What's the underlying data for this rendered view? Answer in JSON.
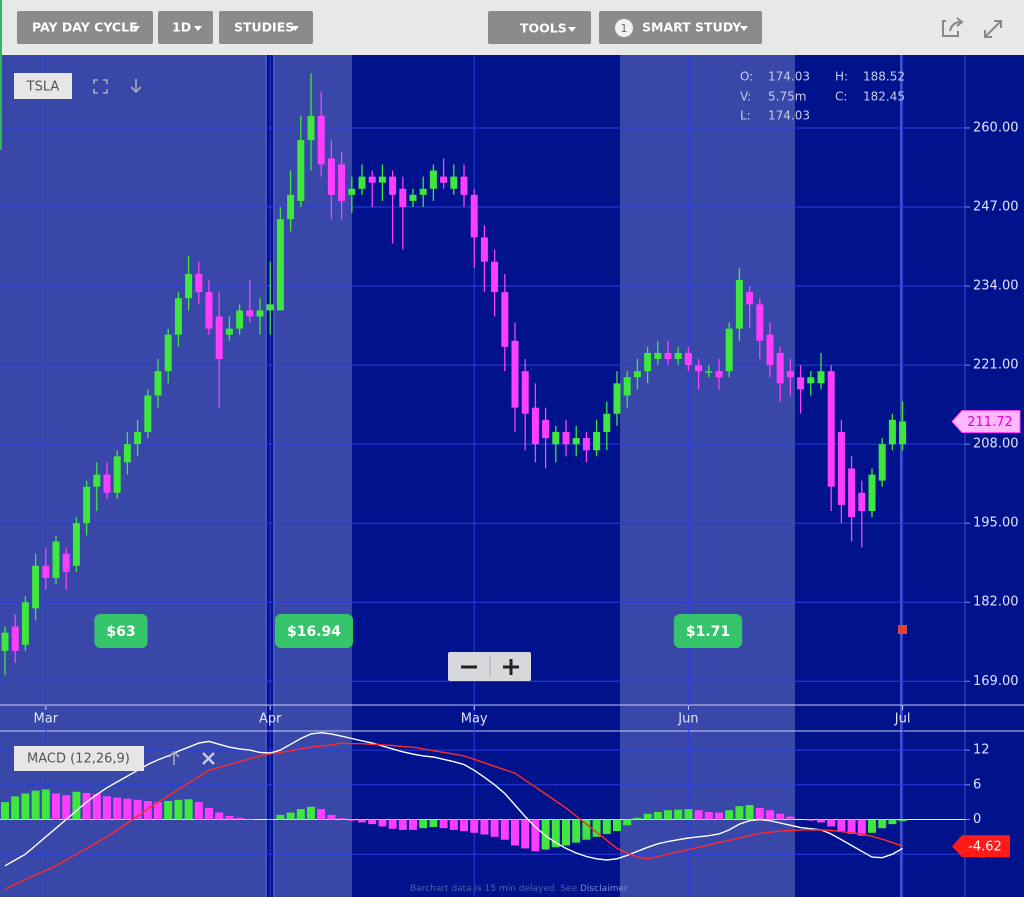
{
  "toolbar": {
    "pay_day_cycle": "PAY DAY CYCLE",
    "interval": "1D",
    "studies": "STUDIES",
    "tools": "TOOLS",
    "smart_study_count": 1,
    "smart_study": "SMART STUDY"
  },
  "footer": {
    "text": "Barchart data is 15 min delayed. See ",
    "link": "Disclaimer"
  },
  "chart_data": [
    {
      "type": "candlestick",
      "symbol": "TSLA",
      "categories": [
        null,
        null,
        null,
        null,
        "Mar",
        null,
        null,
        null,
        null,
        null,
        null,
        null,
        null,
        null,
        null,
        null,
        null,
        null,
        null,
        null,
        null,
        null,
        null,
        null,
        null,
        null,
        "Apr",
        null,
        null,
        null,
        null,
        null,
        null,
        null,
        null,
        null,
        null,
        null,
        null,
        null,
        null,
        null,
        null,
        null,
        null,
        null,
        "May",
        null,
        null,
        null,
        null,
        null,
        null,
        null,
        null,
        null,
        null,
        null,
        null,
        null,
        null,
        null,
        null,
        null,
        null,
        null,
        null,
        "Jun",
        null,
        null,
        null,
        null,
        null,
        null,
        null,
        null,
        null,
        null,
        null,
        null,
        null,
        null,
        null,
        null,
        null,
        null,
        null,
        null,
        "Jul"
      ],
      "open": [
        174,
        178,
        175,
        181,
        188,
        186,
        190,
        188,
        195,
        201,
        203,
        200,
        205,
        208,
        210,
        216,
        220,
        226,
        232,
        236,
        233,
        229,
        226,
        227,
        230,
        229,
        230,
        230,
        245,
        248,
        258,
        262,
        255,
        254,
        249,
        250,
        252,
        251,
        252,
        250,
        248,
        249,
        250,
        252,
        250,
        252,
        249,
        242,
        238,
        233,
        225,
        220,
        214,
        212,
        208,
        210,
        208,
        209,
        207,
        210,
        213,
        216,
        219,
        220,
        222,
        223,
        222,
        223,
        221,
        220,
        220,
        220,
        227,
        233,
        231,
        226,
        223,
        220,
        219,
        218,
        218,
        220,
        210,
        204,
        200,
        197,
        202,
        208,
        208
      ],
      "high": [
        178,
        180,
        183,
        190,
        191,
        193,
        191,
        196,
        202,
        205,
        205,
        207,
        210,
        212,
        217,
        222,
        227,
        233,
        239,
        238,
        235,
        233,
        229,
        231,
        235,
        232,
        238,
        247,
        253,
        262,
        269,
        266,
        258,
        256,
        252,
        254,
        253,
        254,
        253,
        252,
        250,
        252,
        254,
        255,
        254,
        254,
        250,
        244,
        240,
        236,
        228,
        222,
        218,
        214,
        211,
        212,
        211,
        210,
        212,
        215,
        220,
        220,
        222,
        224,
        225,
        225,
        224,
        224,
        222,
        221,
        222,
        228,
        237,
        234,
        232,
        228,
        224,
        222,
        221,
        220,
        223,
        221,
        212,
        206,
        202,
        204,
        209,
        213,
        215
      ],
      "low": [
        170,
        172,
        174,
        179,
        184,
        185,
        184,
        187,
        193,
        197,
        199,
        199,
        203,
        206,
        209,
        214,
        218,
        224,
        230,
        231,
        226,
        214,
        225,
        226,
        228,
        226,
        226,
        230,
        243,
        247,
        253,
        252,
        245,
        245,
        246,
        249,
        247,
        248,
        241,
        240,
        247,
        247,
        248,
        250,
        249,
        247,
        237,
        233,
        229,
        220,
        210,
        207,
        205,
        204,
        205,
        206,
        206,
        205,
        206,
        207,
        211,
        214,
        217,
        218,
        221,
        221,
        221,
        220,
        217,
        219,
        217,
        219,
        225,
        227,
        222,
        219,
        215,
        216,
        213,
        216,
        217,
        197,
        195,
        192,
        191,
        196,
        201,
        207,
        207
      ],
      "close": [
        177,
        174,
        182,
        188,
        186,
        192,
        187,
        195,
        201,
        203,
        200,
        206,
        208,
        210,
        216,
        220,
        226,
        232,
        236,
        233,
        227,
        222,
        227,
        230,
        229,
        230,
        231,
        245,
        249,
        258,
        262,
        254,
        249,
        248,
        250,
        252,
        251,
        252,
        249,
        247,
        249,
        250,
        253,
        251,
        252,
        249,
        242,
        238,
        233,
        224,
        214,
        213,
        208,
        209,
        210,
        208,
        209,
        207,
        210,
        213,
        218,
        219,
        220,
        223,
        223,
        222,
        223,
        221,
        220,
        220,
        219,
        227,
        235,
        231,
        225,
        221,
        218,
        219,
        217,
        219,
        220,
        201,
        198,
        196,
        197,
        203,
        208,
        212,
        211.72
      ],
      "up_color": "#3ee63e",
      "down_color": "#ff3dff",
      "ylim": [
        165.1,
        272
      ],
      "yticks": [
        {
          "value": 169,
          "label": "169.00"
        },
        {
          "value": 182,
          "label": "182.00"
        },
        {
          "value": 195,
          "label": "195.00"
        },
        {
          "value": 208,
          "label": "208.00"
        },
        {
          "value": 221,
          "label": "221.00"
        },
        {
          "value": 234,
          "label": "234.00"
        },
        {
          "value": 247,
          "label": "247.00"
        },
        {
          "value": 260,
          "label": "260.00"
        }
      ],
      "grid": true,
      "quote": [
        {
          "label": "O:",
          "value": 174.03
        },
        {
          "label": "H:",
          "value": 188.52
        },
        {
          "label": "V:",
          "value": "5.75m"
        },
        {
          "label": "C:",
          "value": 182.45
        },
        {
          "label": "L:",
          "value": 174.03
        }
      ],
      "payday_labels": [
        "$63",
        "$16.94",
        "$1.71"
      ]
    },
    {
      "type": "macd",
      "title": "MACD (12,26,9)",
      "histogram": [
        3,
        4,
        4.5,
        5,
        5.2,
        4.5,
        4.2,
        4.8,
        4.6,
        4.4,
        4,
        3.8,
        3.6,
        3.4,
        3.2,
        3,
        3.2,
        3.4,
        3.5,
        3,
        2,
        1.2,
        0.6,
        0.3,
        0.1,
        0,
        0.1,
        0.8,
        1.2,
        1.8,
        2.2,
        1.8,
        0.8,
        0.2,
        -0.2,
        -0.5,
        -0.8,
        -1.2,
        -1.6,
        -1.8,
        -1.8,
        -1.5,
        -1.3,
        -1.5,
        -1.8,
        -2,
        -2.3,
        -2.6,
        -3,
        -3.5,
        -4.5,
        -5,
        -5.5,
        -5.2,
        -4.8,
        -4.5,
        -4,
        -3.5,
        -3,
        -2.5,
        -2,
        -1,
        0.3,
        1,
        1.3,
        1.6,
        1.7,
        1.8,
        1.6,
        1.3,
        1.2,
        1.6,
        2.3,
        2.5,
        2,
        1.6,
        1,
        0.5,
        0,
        -0.2,
        -0.5,
        -1.2,
        -2,
        -2.5,
        -2.8,
        -2.3,
        -1.5,
        -0.8,
        -0.3
      ],
      "macd": [
        -8,
        -7,
        -6,
        -4.5,
        -3,
        -1.5,
        0,
        1.5,
        3,
        4.3,
        5.5,
        6.5,
        7.5,
        8.5,
        9.5,
        10.3,
        11,
        11.8,
        12.5,
        13.2,
        13.5,
        13,
        12.5,
        12.2,
        12,
        11.6,
        11.5,
        12,
        13,
        14,
        14.8,
        15,
        14.8,
        14.4,
        14,
        13.6,
        13.2,
        12.7,
        12.2,
        11.7,
        11.3,
        11,
        10.8,
        10.4,
        10,
        9.5,
        8.5,
        7.3,
        6,
        4.5,
        2.5,
        0.5,
        -1.3,
        -2.8,
        -4,
        -5,
        -5.8,
        -6.4,
        -6.8,
        -7,
        -6.8,
        -6.2,
        -5.5,
        -4.8,
        -4.2,
        -3.8,
        -3.5,
        -3.2,
        -3,
        -2.8,
        -2.5,
        -1.8,
        -0.8,
        -0.2,
        0,
        -0.2,
        -0.6,
        -1,
        -1.4,
        -1.6,
        -1.8,
        -2.5,
        -3.5,
        -4.5,
        -5.5,
        -6.5,
        -6.6,
        -6,
        -5
      ],
      "signal": [
        -12,
        -11.2,
        -10.4,
        -9.6,
        -8.8,
        -8,
        -7,
        -6,
        -5,
        -4,
        -3,
        -1.8,
        -0.6,
        0.6,
        1.8,
        3,
        4.1,
        5.2,
        6.3,
        7.4,
        8.5,
        9,
        9.5,
        10,
        10.5,
        11,
        11.3,
        11.6,
        11.9,
        12.2,
        12.5,
        12.7,
        12.9,
        13.2,
        13.1,
        13.1,
        13,
        12.9,
        12.8,
        12.6,
        12.5,
        12.2,
        11.9,
        11.6,
        11.3,
        11,
        10.4,
        9.8,
        9.2,
        8.6,
        8,
        6.8,
        5.6,
        4.4,
        3.2,
        2,
        0.6,
        -0.8,
        -2.2,
        -3.6,
        -5,
        -5.8,
        -6.5,
        -6.8,
        -6.4,
        -6,
        -5.6,
        -5.2,
        -4.8,
        -4.4,
        -4,
        -3.6,
        -3.2,
        -2.8,
        -2.4,
        -2.2,
        -2,
        -1.9,
        -1.8,
        -1.8,
        -1.8,
        -1.9,
        -2.1,
        -2.3,
        -2.5,
        -2.9,
        -3.4,
        -4,
        -4.62
      ],
      "up_color": "#3ee63e",
      "down_color": "#ff3dff",
      "macd_color": "#ffffff",
      "signal_color": "#ff2a2a",
      "ylim": [
        -13.4,
        15.3
      ],
      "yticks": [
        12,
        6,
        0,
        -6
      ]
    }
  ]
}
